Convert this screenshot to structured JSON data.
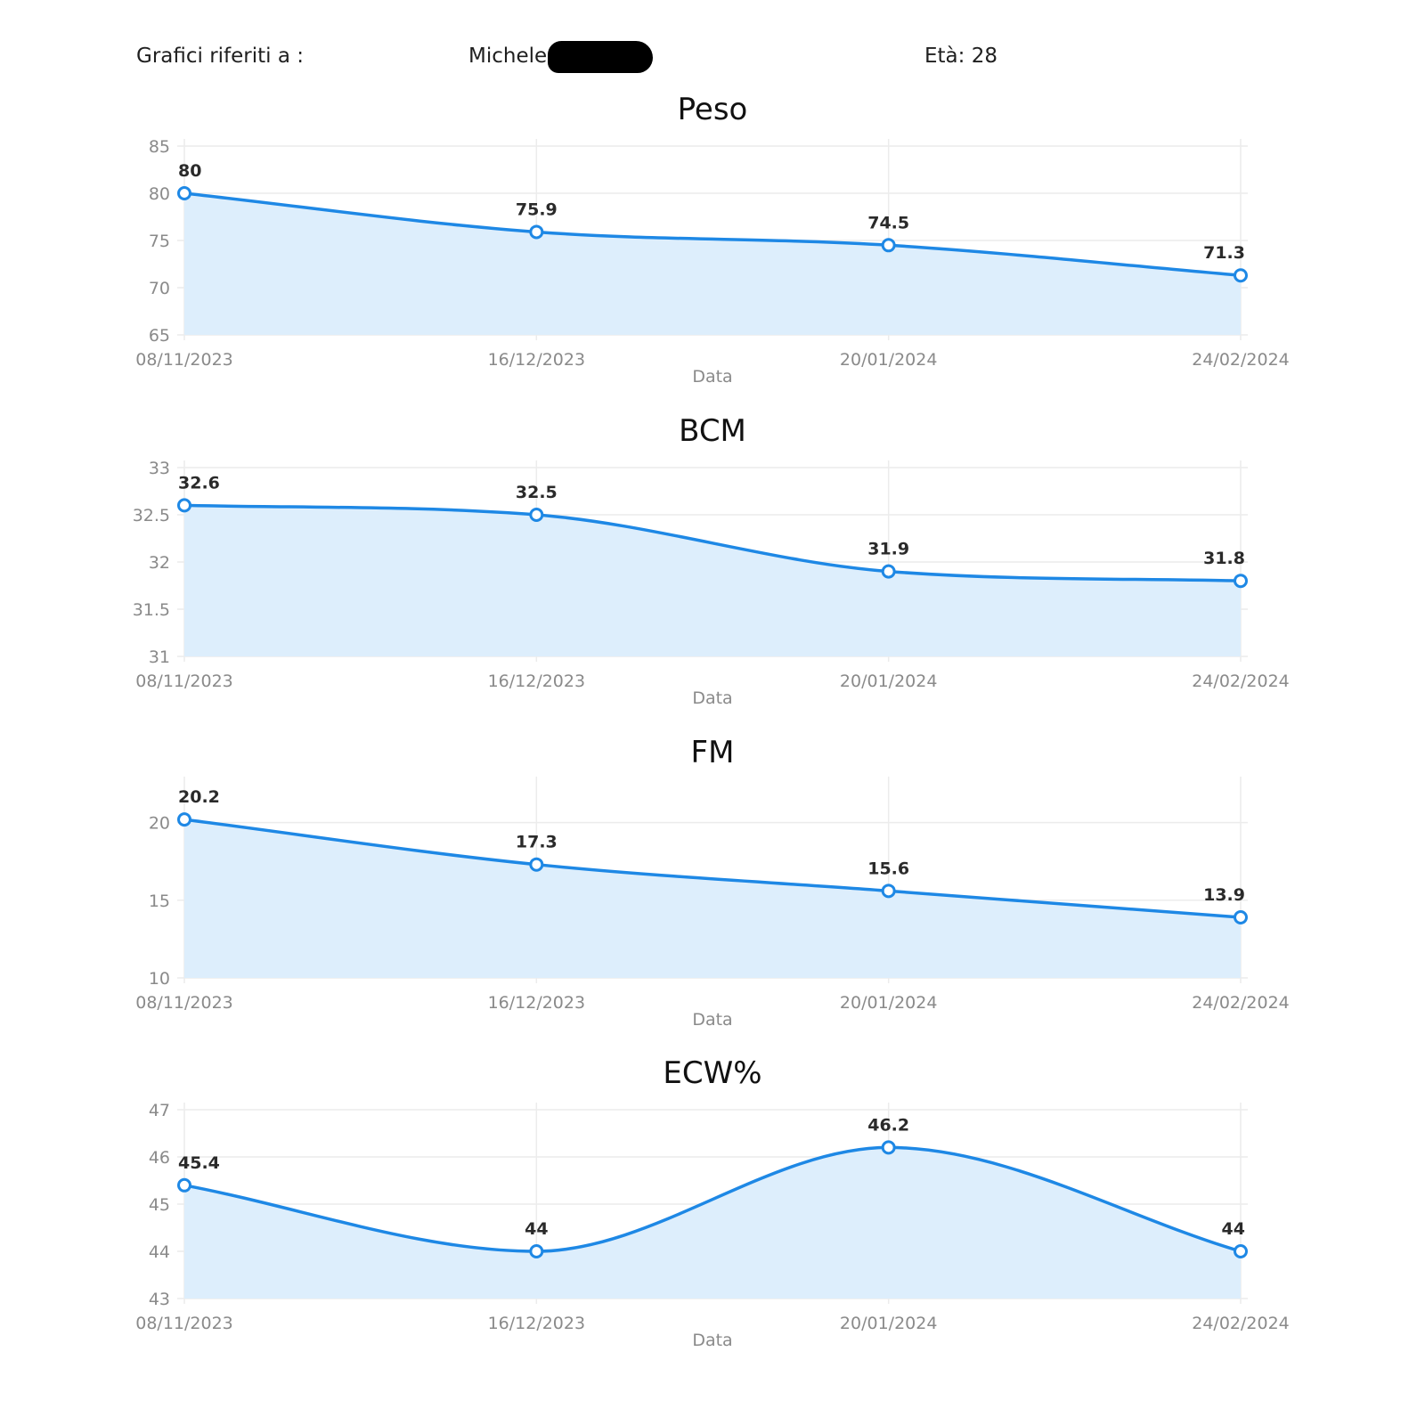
{
  "header": {
    "label": "Grafici riferiti a :",
    "name": "Michele",
    "age": "Età: 28"
  },
  "colors": {
    "line": "#1e88e5",
    "fill": "#ddeefc",
    "grid": "#ececec",
    "point_fill": "#ffffff"
  },
  "chart_data": [
    {
      "type": "area",
      "title": "Peso",
      "xlabel": "Data",
      "ylabel": "",
      "x": [
        "08/11/2023",
        "16/12/2023",
        "20/01/2024",
        "24/02/2024"
      ],
      "values": [
        80,
        75.9,
        74.5,
        71.3
      ],
      "labels": [
        "80",
        "75.9",
        "74.5",
        "71.3"
      ],
      "ylim": [
        65,
        85
      ],
      "yticks": [
        "65",
        "70",
        "75",
        "80",
        "85"
      ],
      "grid": true
    },
    {
      "type": "area",
      "title": "BCM",
      "xlabel": "Data",
      "ylabel": "",
      "x": [
        "08/11/2023",
        "16/12/2023",
        "20/01/2024",
        "24/02/2024"
      ],
      "values": [
        32.6,
        32.5,
        31.9,
        31.8
      ],
      "labels": [
        "32.6",
        "32.5",
        "31.9",
        "31.8"
      ],
      "ylim": [
        31,
        33
      ],
      "yticks": [
        "31",
        "31.5",
        "32",
        "32.5",
        "33"
      ],
      "grid": true
    },
    {
      "type": "area",
      "title": "FM",
      "xlabel": "Data",
      "ylabel": "",
      "x": [
        "08/11/2023",
        "16/12/2023",
        "20/01/2024",
        "24/02/2024"
      ],
      "values": [
        20.2,
        17.3,
        15.6,
        13.9
      ],
      "labels": [
        "20.2",
        "17.3",
        "15.6",
        "13.9"
      ],
      "ylim": [
        10,
        22.5
      ],
      "yticks": [
        "10",
        "15",
        "20"
      ],
      "grid": true
    },
    {
      "type": "area",
      "title": "ECW%",
      "xlabel": "Data",
      "ylabel": "",
      "x": [
        "08/11/2023",
        "16/12/2023",
        "20/01/2024",
        "24/02/2024"
      ],
      "values": [
        45.4,
        44,
        46.2,
        44
      ],
      "labels": [
        "45.4",
        "44",
        "46.2",
        "44"
      ],
      "ylim": [
        43,
        47
      ],
      "yticks": [
        "43",
        "44",
        "45",
        "46",
        "47"
      ],
      "grid": true
    }
  ]
}
